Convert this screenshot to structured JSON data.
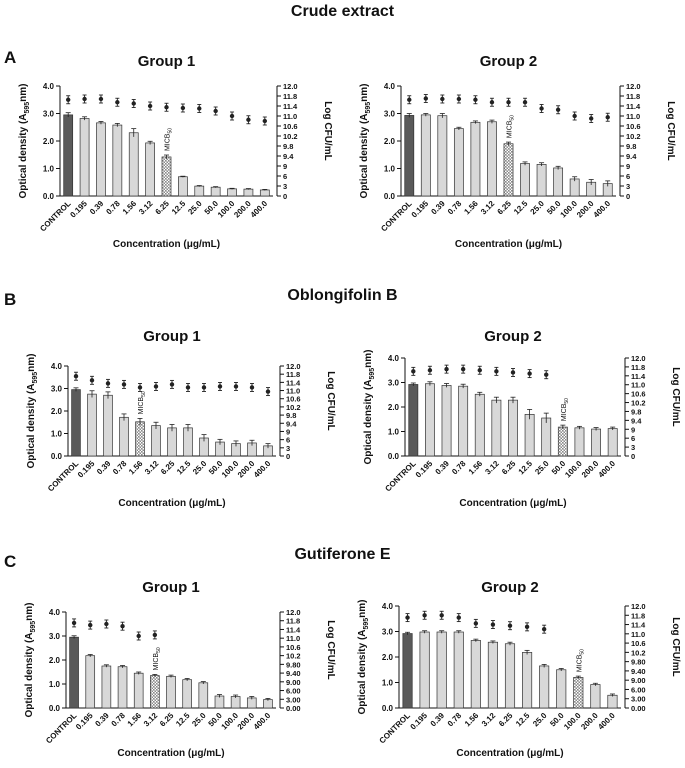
{
  "figure": {
    "sections": [
      {
        "letter": "A",
        "title": "Crude extract"
      },
      {
        "letter": "B",
        "title": "Oblongifolin B"
      },
      {
        "letter": "C",
        "title": "Gutiferone E"
      }
    ]
  },
  "colors": {
    "bar_light": "#d8d8d8",
    "bar_control": "#5a5a5a",
    "bar_mic_pattern": "#8a8a8a",
    "marker": "#222222",
    "axis": "#111111"
  },
  "chart_data": [
    {
      "id": "A1",
      "type": "bar",
      "section": "Crude extract",
      "title": "Group 1",
      "ylabel": "Optical density (A595nm)",
      "y2label": "Log CFU/mL",
      "xlabel": "Concentration (μg/mL)",
      "categories": [
        "CONTROL",
        "0.195",
        "0.39",
        "0.78",
        "1.56",
        "3.12",
        "6.25",
        "12.5",
        "25.0",
        "50.0",
        "100.0",
        "200.0",
        "400.0"
      ],
      "ylim": [
        0,
        4.0
      ],
      "yticks": [
        "0.0",
        "1.0",
        "2.0",
        "3.0",
        "4.0"
      ],
      "y2ticks": [
        "0",
        "3",
        "6",
        "9",
        "9.4",
        "9.8",
        "10.2",
        "10.6",
        "11.0",
        "11.4",
        "11.8",
        "12.0"
      ],
      "y2lim": [
        0,
        12.0
      ],
      "series": [
        {
          "name": "Optical density",
          "values": [
            2.95,
            2.82,
            2.66,
            2.58,
            2.3,
            1.93,
            1.42,
            0.7,
            0.36,
            0.32,
            0.26,
            0.25,
            0.22
          ],
          "errors": [
            0.08,
            0.06,
            0.05,
            0.06,
            0.15,
            0.06,
            0.07,
            0.02,
            0.02,
            0.02,
            0.02,
            0.02,
            0.02
          ]
        },
        {
          "name": "Log CFU/mL",
          "values": [
            11.65,
            11.68,
            11.68,
            11.55,
            11.5,
            11.4,
            11.35,
            11.32,
            11.3,
            11.2,
            11.0,
            10.85,
            10.8
          ]
        }
      ],
      "mic_index": 6,
      "mic_label": "MICB50"
    },
    {
      "id": "A2",
      "type": "bar",
      "section": "Crude extract",
      "title": "Group 2",
      "ylabel": "Optical density (A595nm)",
      "y2label": "Log CFU/mL",
      "xlabel": "Concentration (μg/mL)",
      "categories": [
        "CONTROL",
        "0.195",
        "0.39",
        "0.78",
        "1.56",
        "3.12",
        "6.25",
        "12.5",
        "25.0",
        "50.0",
        "100.0",
        "200.0",
        "400.0"
      ],
      "ylim": [
        0,
        4.0
      ],
      "yticks": [
        "0.0",
        "1.0",
        "2.0",
        "3.0",
        "4.0"
      ],
      "y2ticks": [
        "0",
        "3",
        "6",
        "9",
        "9.4",
        "9.8",
        "10.2",
        "10.6",
        "11.0",
        "11.4",
        "11.8",
        "12.0"
      ],
      "y2lim": [
        0,
        12.0
      ],
      "series": [
        {
          "name": "Optical density",
          "values": [
            2.93,
            2.95,
            2.92,
            2.45,
            2.68,
            2.7,
            1.9,
            1.18,
            1.15,
            1.02,
            0.62,
            0.5,
            0.45
          ],
          "errors": [
            0.07,
            0.05,
            0.08,
            0.05,
            0.05,
            0.06,
            0.06,
            0.06,
            0.06,
            0.06,
            0.08,
            0.1,
            0.1
          ]
        },
        {
          "name": "Log CFU/mL",
          "values": [
            11.65,
            11.7,
            11.68,
            11.68,
            11.65,
            11.55,
            11.55,
            11.55,
            11.3,
            11.25,
            11.0,
            10.9,
            10.95
          ]
        }
      ],
      "mic_index": 6,
      "mic_label": "MICB50"
    },
    {
      "id": "B1",
      "type": "bar",
      "section": "Oblongifolin B",
      "title": "Group 1",
      "ylabel": "Optical density (A595nm)",
      "y2label": "Log CFU/mL",
      "xlabel": "Concentration (μg/mL)",
      "categories": [
        "CONTROL",
        "0.195",
        "0.39",
        "0.78",
        "1.56",
        "3.12",
        "6.25",
        "12.5",
        "25.0",
        "50.0",
        "100.0",
        "200.0",
        "400.0"
      ],
      "ylim": [
        0,
        4.0
      ],
      "yticks": [
        "0.0",
        "1.0",
        "2.0",
        "3.0",
        "4.0"
      ],
      "y2ticks": [
        "0",
        "3",
        "6",
        "9",
        "9.4",
        "9.8",
        "10.2",
        "10.6",
        "11.0",
        "11.4",
        "11.8",
        "12.0"
      ],
      "y2lim": [
        0,
        12.0
      ],
      "series": [
        {
          "name": "Optical density",
          "values": [
            2.95,
            2.75,
            2.7,
            1.72,
            1.52,
            1.35,
            1.25,
            1.25,
            0.8,
            0.62,
            0.55,
            0.58,
            0.45
          ],
          "errors": [
            0.08,
            0.15,
            0.15,
            0.15,
            0.15,
            0.15,
            0.15,
            0.15,
            0.15,
            0.12,
            0.12,
            0.12,
            0.1
          ]
        },
        {
          "name": "Log CFU/mL",
          "values": [
            11.7,
            11.5,
            11.35,
            11.3,
            11.15,
            11.2,
            11.3,
            11.15,
            11.15,
            11.2,
            11.2,
            11.15,
            10.95
          ]
        }
      ],
      "mic_index": 4,
      "mic_label": "MICB50"
    },
    {
      "id": "B2",
      "type": "bar",
      "section": "Oblongifolin B",
      "title": "Group 2",
      "ylabel": "Optical density (A595nm)",
      "y2label": "Log CFU/mL",
      "xlabel": "Concentration (μg/mL)",
      "categories": [
        "CONTROL",
        "0.195",
        "0.39",
        "0.78",
        "1.56",
        "3.12",
        "6.25",
        "12.5",
        "25.0",
        "50.0",
        "100.0",
        "200.0",
        "400.0"
      ],
      "ylim": [
        0,
        4.0
      ],
      "yticks": [
        "0.0",
        "1.0",
        "2.0",
        "3.0",
        "4.0"
      ],
      "y2ticks": [
        "0",
        "3",
        "6",
        "9",
        "9.4",
        "9.8",
        "10.2",
        "10.6",
        "11.0",
        "11.4",
        "11.8",
        "12.0"
      ],
      "y2lim": [
        0,
        12.0
      ],
      "series": [
        {
          "name": "Optical density",
          "values": [
            2.92,
            2.95,
            2.88,
            2.85,
            2.52,
            2.28,
            2.28,
            1.7,
            1.55,
            1.18,
            1.15,
            1.1,
            1.12
          ],
          "errors": [
            0.06,
            0.08,
            0.08,
            0.08,
            0.08,
            0.12,
            0.12,
            0.2,
            0.2,
            0.08,
            0.06,
            0.06,
            0.06
          ]
        },
        {
          "name": "Log CFU/mL",
          "values": [
            11.6,
            11.65,
            11.7,
            11.7,
            11.65,
            11.6,
            11.55,
            11.5,
            11.45,
            null,
            null,
            null,
            null
          ]
        }
      ],
      "mic_index": 9,
      "mic_label": "MICB50"
    },
    {
      "id": "C1",
      "type": "bar",
      "section": "Gutiferone E",
      "title": "Group 1",
      "ylabel": "Optical density (A595nm)",
      "y2label": "Log CFU/mL",
      "xlabel": "Concentration (μg/mL)",
      "categories": [
        "CONTROL",
        "0.195",
        "0.39",
        "0.78",
        "1.56",
        "3.12",
        "6.25",
        "12.5",
        "25.0",
        "50.0",
        "100.0",
        "200.0",
        "400.0"
      ],
      "ylim": [
        0,
        4.0
      ],
      "yticks": [
        "0.0",
        "1.0",
        "2.0",
        "3.0",
        "4.0"
      ],
      "y2ticks": [
        "0.00",
        "3.00",
        "6.00",
        "9.00",
        "9.40",
        "9.80",
        "10.2",
        "10.6",
        "11.0",
        "11.4",
        "11.8",
        "12.0"
      ],
      "y2lim": [
        0,
        12.0
      ],
      "series": [
        {
          "name": "Optical density",
          "values": [
            2.95,
            2.18,
            1.75,
            1.72,
            1.45,
            1.35,
            1.32,
            1.18,
            1.05,
            0.5,
            0.48,
            0.42,
            0.35
          ],
          "errors": [
            0.06,
            0.05,
            0.05,
            0.05,
            0.05,
            0.05,
            0.05,
            0.05,
            0.05,
            0.06,
            0.06,
            0.06,
            0.05
          ]
        },
        {
          "name": "Log CFU/mL",
          "values": [
            11.7,
            11.6,
            11.65,
            11.55,
            11.1,
            11.15,
            null,
            null,
            null,
            null,
            null,
            null,
            null
          ]
        }
      ],
      "mic_index": 5,
      "mic_label": "MICB50"
    },
    {
      "id": "C2",
      "type": "bar",
      "section": "Gutiferone E",
      "title": "Group 2",
      "ylabel": "Optical density (A595nm)",
      "y2label": "Log CFU/mL",
      "xlabel": "Concentration (μg/mL)",
      "categories": [
        "CONTROL",
        "0.195",
        "0.39",
        "0.78",
        "1.56",
        "3.12",
        "6.25",
        "12.5",
        "25.0",
        "50.0",
        "100.0",
        "200.0",
        "400.0"
      ],
      "ylim": [
        0,
        4.0
      ],
      "yticks": [
        "0.0",
        "1.0",
        "2.0",
        "3.0",
        "4.0"
      ],
      "y2ticks": [
        "0.00",
        "3.00",
        "6.00",
        "9.00",
        "9.40",
        "9.80",
        "10.2",
        "10.6",
        "11.0",
        "11.4",
        "11.8",
        "12.0"
      ],
      "y2lim": [
        0,
        12.0
      ],
      "series": [
        {
          "name": "Optical density",
          "values": [
            2.92,
            2.98,
            2.98,
            2.98,
            2.65,
            2.58,
            2.52,
            2.18,
            1.65,
            1.5,
            1.2,
            0.92,
            0.5
          ],
          "errors": [
            0.05,
            0.05,
            0.05,
            0.05,
            0.05,
            0.05,
            0.06,
            0.08,
            0.06,
            0.05,
            0.05,
            0.05,
            0.05
          ]
        },
        {
          "name": "Log CFU/mL",
          "values": [
            11.7,
            11.8,
            11.8,
            11.7,
            11.45,
            11.4,
            11.35,
            11.3,
            11.2,
            null,
            null,
            null,
            null
          ]
        }
      ],
      "mic_index": 10,
      "mic_label": "MICB50"
    }
  ]
}
